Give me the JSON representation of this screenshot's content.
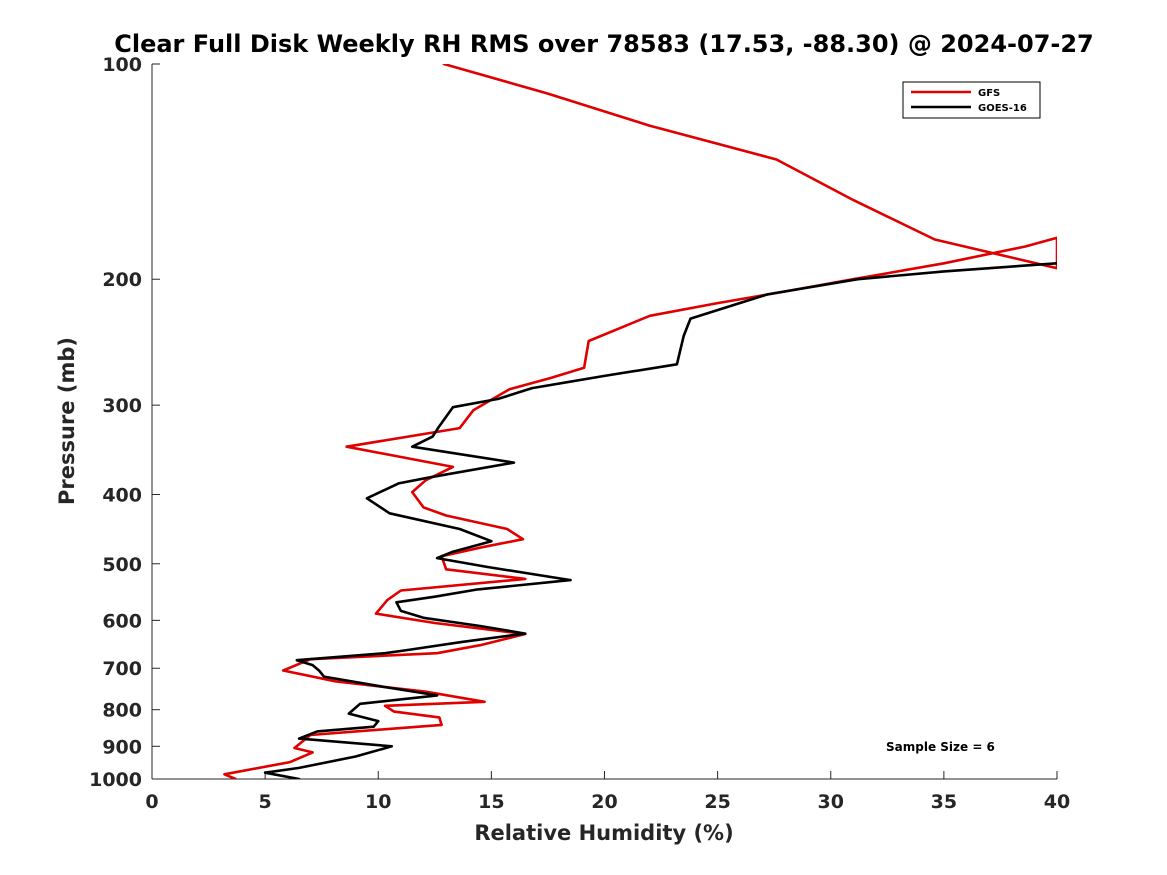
{
  "chart_data": {
    "type": "line",
    "title": "Clear Full Disk Weekly RH RMS over 78583 (17.53, -88.30) @ 2024-07-27",
    "xlabel": "Relative Humidity (%)",
    "ylabel": "Pressure (mb)",
    "xlim": [
      0,
      40
    ],
    "ylim": [
      100,
      1000
    ],
    "y_scale": "log",
    "y_reversed": true,
    "grid": false,
    "legend_position": "top-right",
    "x_ticks": [
      "0",
      "5",
      "10",
      "15",
      "20",
      "25",
      "30",
      "35",
      "40"
    ],
    "y_ticks": [
      "100",
      "200",
      "300",
      "400",
      "500",
      "600",
      "700",
      "800",
      "900",
      "1000"
    ],
    "annotation": "Sample Size = 6",
    "series": [
      {
        "name": "GFS",
        "color": "#e00000",
        "points": [
          [
            12.9,
            100
          ],
          [
            17.5,
            110
          ],
          [
            22.0,
            122
          ],
          [
            27.6,
            136
          ],
          [
            31.0,
            155
          ],
          [
            34.6,
            176
          ],
          [
            40.0,
            193
          ],
          [
            40.0,
            175
          ],
          [
            38.6,
            180
          ],
          [
            35.0,
            190
          ],
          [
            31.0,
            200
          ],
          [
            28.0,
            208
          ],
          [
            25.0,
            216
          ],
          [
            22.0,
            225
          ],
          [
            19.3,
            244
          ],
          [
            19.1,
            266
          ],
          [
            17.6,
            275
          ],
          [
            15.8,
            285
          ],
          [
            14.2,
            305
          ],
          [
            13.6,
            323
          ],
          [
            8.6,
            343
          ],
          [
            13.3,
            366
          ],
          [
            12.1,
            382
          ],
          [
            11.5,
            397
          ],
          [
            12.0,
            417
          ],
          [
            13.0,
            428
          ],
          [
            15.7,
            447
          ],
          [
            16.4,
            462
          ],
          [
            14.6,
            474
          ],
          [
            12.8,
            488
          ],
          [
            13.0,
            509
          ],
          [
            16.5,
            525
          ],
          [
            11.0,
            545
          ],
          [
            10.4,
            562
          ],
          [
            9.9,
            587
          ],
          [
            12.5,
            605
          ],
          [
            16.5,
            627
          ],
          [
            14.5,
            650
          ],
          [
            12.6,
            667
          ],
          [
            7.0,
            680
          ],
          [
            5.8,
            705
          ],
          [
            8.1,
            730
          ],
          [
            12.1,
            755
          ],
          [
            14.7,
            780
          ],
          [
            10.3,
            790
          ],
          [
            10.7,
            805
          ],
          [
            12.7,
            820
          ],
          [
            12.8,
            840
          ],
          [
            7.0,
            868
          ],
          [
            6.3,
            905
          ],
          [
            7.1,
            918
          ],
          [
            6.1,
            947
          ],
          [
            3.2,
            985
          ],
          [
            3.7,
            1000
          ]
        ]
      },
      {
        "name": "GOES-16",
        "color": "#000000",
        "points": [
          [
            40.0,
            190
          ],
          [
            35.0,
            195
          ],
          [
            31.2,
            200
          ],
          [
            27.2,
            210
          ],
          [
            23.8,
            227
          ],
          [
            23.5,
            240
          ],
          [
            23.2,
            263
          ],
          [
            20.0,
            273
          ],
          [
            16.8,
            284
          ],
          [
            15.3,
            294
          ],
          [
            13.3,
            302
          ],
          [
            12.7,
            321
          ],
          [
            12.4,
            332
          ],
          [
            11.5,
            343
          ],
          [
            16.0,
            361
          ],
          [
            12.2,
            379
          ],
          [
            10.9,
            386
          ],
          [
            9.5,
            405
          ],
          [
            10.5,
            425
          ],
          [
            13.6,
            447
          ],
          [
            15.0,
            465
          ],
          [
            13.3,
            481
          ],
          [
            12.6,
            491
          ],
          [
            14.8,
            505
          ],
          [
            18.5,
            527
          ],
          [
            14.4,
            543
          ],
          [
            12.5,
            556
          ],
          [
            10.8,
            566
          ],
          [
            11.0,
            582
          ],
          [
            12.0,
            595
          ],
          [
            14.5,
            611
          ],
          [
            16.5,
            626
          ],
          [
            13.7,
            643
          ],
          [
            11.3,
            660
          ],
          [
            10.3,
            667
          ],
          [
            6.4,
            682
          ],
          [
            7.1,
            693
          ],
          [
            7.4,
            706
          ],
          [
            7.6,
            719
          ],
          [
            10.1,
            742
          ],
          [
            12.6,
            764
          ],
          [
            9.2,
            785
          ],
          [
            8.7,
            810
          ],
          [
            10.0,
            830
          ],
          [
            9.8,
            845
          ],
          [
            7.3,
            858
          ],
          [
            6.5,
            878
          ],
          [
            10.6,
            900
          ],
          [
            9.0,
            930
          ],
          [
            6.5,
            965
          ],
          [
            5.0,
            980
          ],
          [
            6.5,
            1000
          ]
        ]
      }
    ]
  }
}
